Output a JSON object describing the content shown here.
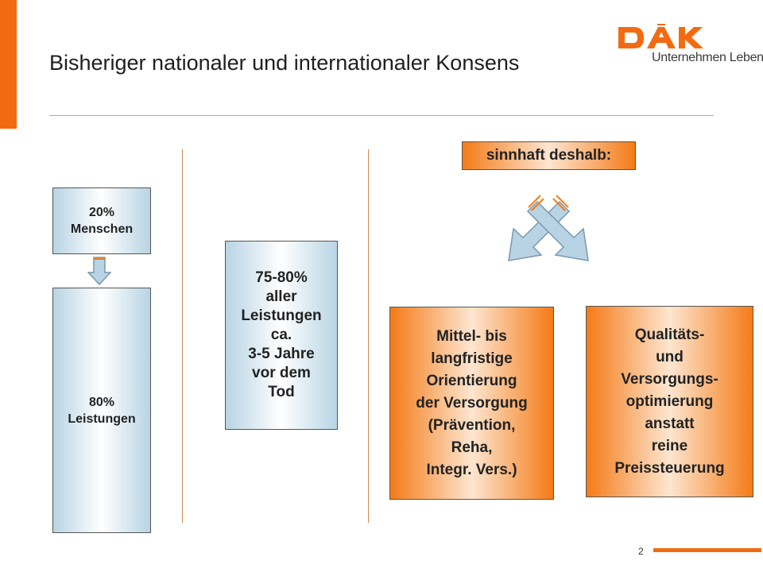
{
  "title": "Bisheriger nationaler und internationaler Konsens",
  "logo": {
    "brand": "DAK",
    "tagline": "Unternehmen Leben"
  },
  "box_top_left": {
    "lines": [
      "20%",
      "Menschen"
    ]
  },
  "box_bottom_left": {
    "lines": [
      "80%",
      "Leistungen"
    ]
  },
  "box_middle": {
    "lines": [
      "75-80%",
      "aller",
      "Leistungen",
      "ca.",
      "3-5 Jahre",
      "vor dem",
      "Tod"
    ]
  },
  "label_sinnhaft": "sinnhaft deshalb:",
  "box_right_1": {
    "lines": [
      "Mittel- bis",
      "langfristige",
      "Orientierung",
      "der Versorgung",
      "(Prävention,",
      "Reha,",
      "Integr. Vers.)"
    ]
  },
  "box_right_2": {
    "lines": [
      "Qualitäts-",
      "und",
      "Versorgungs-",
      "optimierung",
      "anstatt",
      "reine",
      "Preissteuerung"
    ]
  },
  "page_number": "2",
  "colors": {
    "accent": "#f26b12",
    "blue": "#b8d4e4",
    "orange": "#f47b17"
  }
}
